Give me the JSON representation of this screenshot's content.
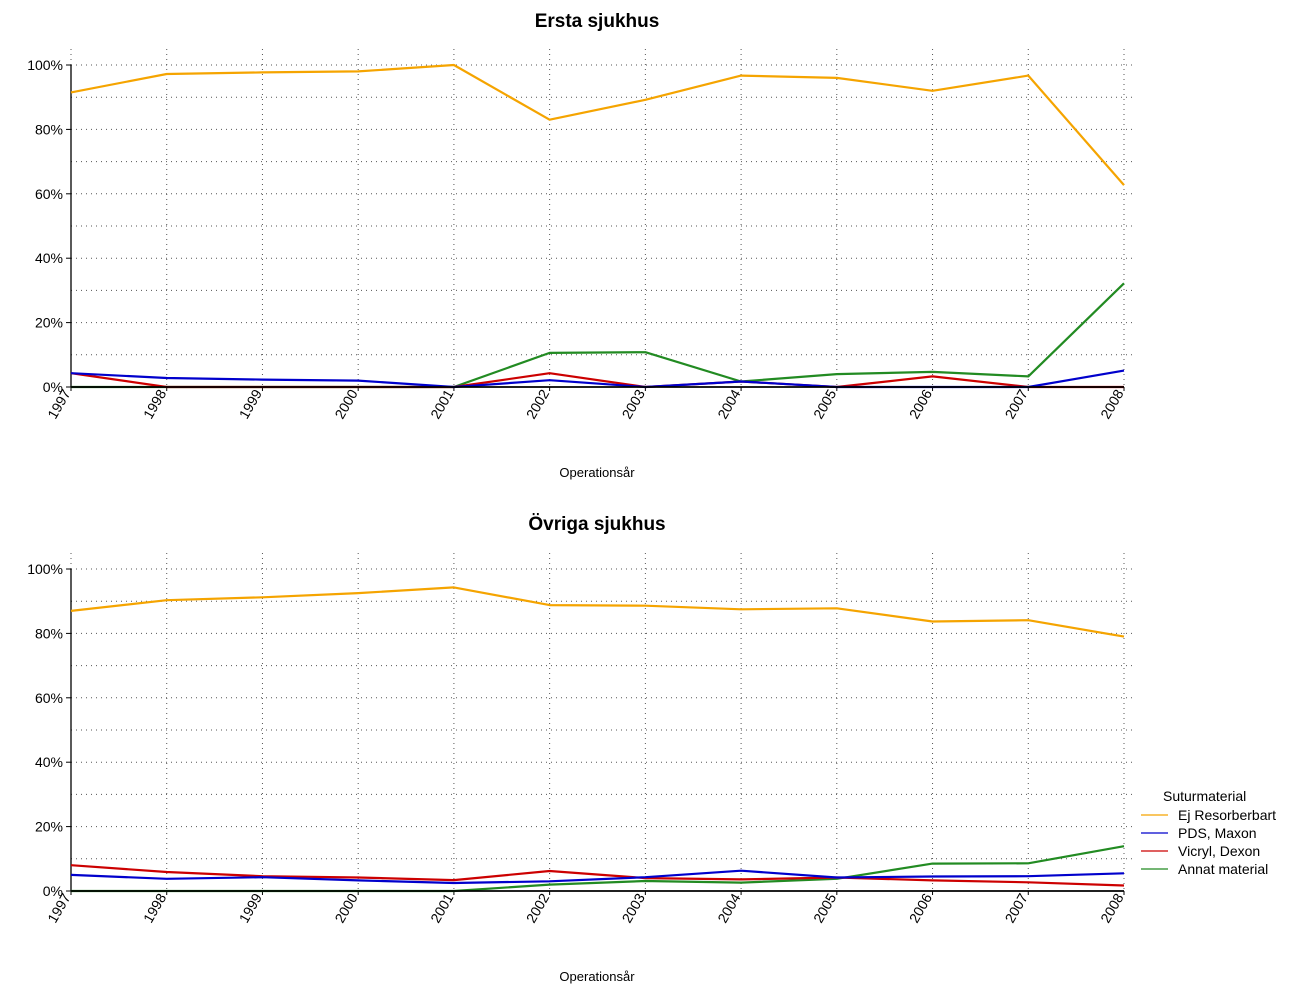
{
  "chart_data": [
    {
      "type": "line",
      "title": "Ersta sjukhus",
      "xlabel": "Operationsår",
      "ylabel": "",
      "x": [
        "1997",
        "1998",
        "1999",
        "2000",
        "2001",
        "2002",
        "2003",
        "2004",
        "2005",
        "2006",
        "2007",
        "2008"
      ],
      "ylim": [
        0,
        100
      ],
      "yticks": [
        "0%",
        "20%",
        "40%",
        "60%",
        "80%",
        "100%"
      ],
      "grid": true,
      "series": [
        {
          "name": "Ej Resorberbart",
          "color": "#f5a400",
          "values": [
            91.5,
            97.2,
            97.7,
            98.0,
            100.0,
            83.0,
            89.2,
            96.7,
            96.0,
            92.0,
            96.7,
            62.7
          ]
        },
        {
          "name": "PDS, Maxon",
          "color": "#0000cc",
          "values": [
            4.3,
            2.8,
            2.3,
            2.0,
            0.0,
            2.1,
            0.0,
            1.7,
            0.0,
            0.0,
            0.0,
            5.1
          ]
        },
        {
          "name": "Vicryl, Dexon",
          "color": "#cc0000",
          "values": [
            4.3,
            0.0,
            0.0,
            0.0,
            0.0,
            4.3,
            0.0,
            1.7,
            0.0,
            3.3,
            0.0,
            0.0
          ]
        },
        {
          "name": "Annat material",
          "color": "#228b22",
          "values": [
            0.0,
            0.0,
            0.0,
            0.0,
            0.0,
            10.6,
            10.8,
            1.7,
            4.0,
            4.7,
            3.3,
            32.2
          ]
        }
      ]
    },
    {
      "type": "line",
      "title": "Övriga sjukhus",
      "xlabel": "Operationsår",
      "ylabel": "",
      "x": [
        "1997",
        "1998",
        "1999",
        "2000",
        "2001",
        "2002",
        "2003",
        "2004",
        "2005",
        "2006",
        "2007",
        "2008"
      ],
      "ylim": [
        0,
        100
      ],
      "yticks": [
        "0%",
        "20%",
        "40%",
        "60%",
        "80%",
        "100%"
      ],
      "grid": true,
      "series": [
        {
          "name": "Ej Resorberbart",
          "color": "#f5a400",
          "values": [
            87.0,
            90.3,
            91.2,
            92.5,
            94.3,
            88.8,
            88.6,
            87.5,
            87.8,
            83.7,
            84.1,
            79.0
          ]
        },
        {
          "name": "PDS, Maxon",
          "color": "#0000cc",
          "values": [
            5.0,
            3.8,
            4.3,
            3.3,
            2.5,
            3.0,
            4.3,
            6.3,
            4.2,
            4.5,
            4.6,
            5.5
          ]
        },
        {
          "name": "Vicryl, Dexon",
          "color": "#cc0000",
          "values": [
            8.0,
            5.9,
            4.6,
            4.2,
            3.4,
            6.2,
            4.0,
            3.6,
            4.2,
            3.3,
            2.7,
            1.7
          ]
        },
        {
          "name": "Annat material",
          "color": "#228b22",
          "values": [
            0.0,
            0.0,
            0.0,
            0.0,
            0.0,
            2.0,
            3.1,
            2.6,
            3.8,
            8.5,
            8.6,
            13.9
          ]
        }
      ]
    }
  ],
  "legend": {
    "title": "Suturmaterial",
    "placement": "right",
    "items": [
      {
        "label": "Ej Resorberbart",
        "color": "#f5a400"
      },
      {
        "label": "PDS, Maxon",
        "color": "#0000cc"
      },
      {
        "label": "Vicryl, Dexon",
        "color": "#cc0000"
      },
      {
        "label": "Annat material",
        "color": "#228b22"
      }
    ]
  }
}
